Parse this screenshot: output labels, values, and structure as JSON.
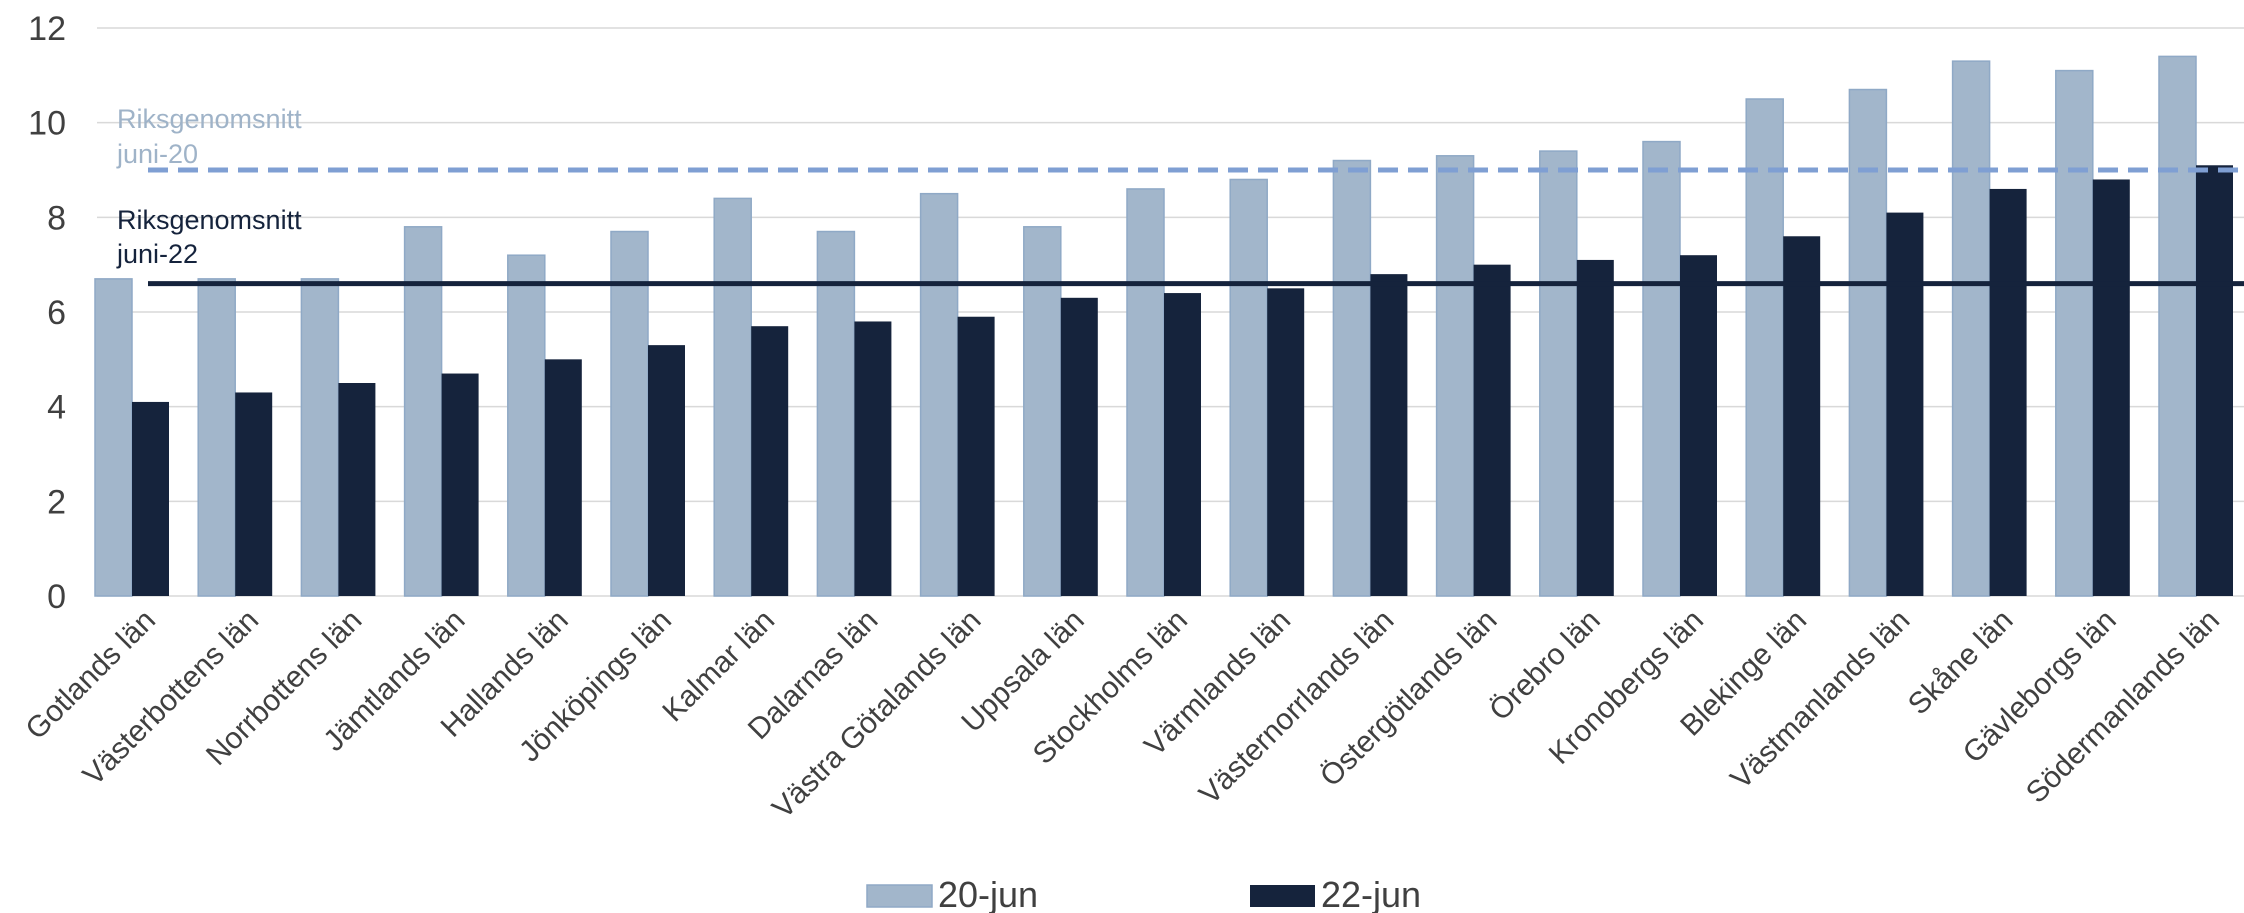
{
  "colors": {
    "series_20": "#a2b6cb",
    "series_20_border": "#8fa9c6",
    "series_22": "#15233c",
    "avg_20": "#7f9fd3",
    "avg_20_text": "#9fb3c8",
    "avg_22": "#15233c",
    "grid": "#d9d9d9",
    "text": "#404040"
  },
  "chart_data": {
    "type": "bar",
    "categories": [
      "Gotlands län",
      "Västerbottens län",
      "Norrbottens län",
      "Jämtlands län",
      "Hallands län",
      "Jönköpings län",
      "Kalmar län",
      "Dalarnas län",
      "Västra Götalands län",
      "Uppsala län",
      "Stockholms län",
      "Värmlands län",
      "Västernorrlands län",
      "Östergötlands län",
      "Örebro län",
      "Kronobergs län",
      "Blekinge län",
      "Västmanlands län",
      "Skåne län",
      "Gävleborgs län",
      "Södermanlands län"
    ],
    "series": [
      {
        "name": "20-jun",
        "values": [
          6.7,
          6.7,
          6.7,
          7.8,
          7.2,
          7.7,
          8.4,
          7.7,
          8.5,
          7.8,
          8.6,
          8.8,
          9.2,
          9.3,
          9.4,
          9.6,
          10.5,
          10.7,
          11.3,
          11.1,
          11.4
        ]
      },
      {
        "name": "22-jun",
        "values": [
          4.1,
          4.3,
          4.5,
          4.7,
          5.0,
          5.3,
          5.7,
          5.8,
          5.9,
          6.3,
          6.4,
          6.5,
          6.8,
          7.0,
          7.1,
          7.2,
          7.6,
          8.1,
          8.6,
          8.8,
          9.1
        ]
      }
    ],
    "reference_lines": [
      {
        "label_line1": "Riksgenomsnitt",
        "label_line2": "juni-20",
        "value": 9.0,
        "style": "dashed"
      },
      {
        "label_line1": "Riksgenomsnitt",
        "label_line2": "juni-22",
        "value": 6.6,
        "style": "solid"
      }
    ],
    "ylim": [
      0,
      12
    ],
    "yticks": [
      0,
      2,
      4,
      6,
      8,
      10,
      12
    ],
    "grid": true,
    "legend_position": "bottom"
  }
}
